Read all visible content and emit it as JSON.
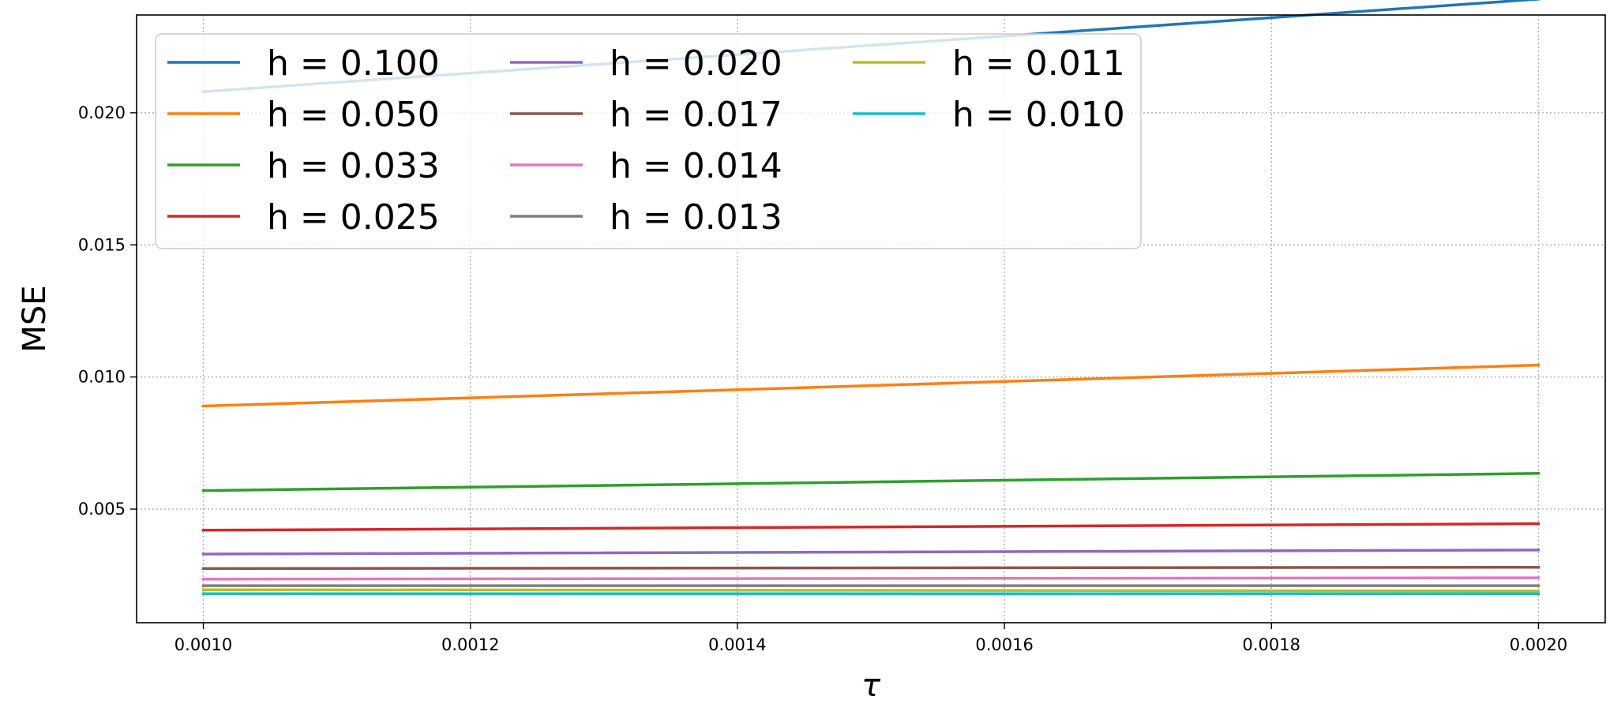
{
  "chart_data": {
    "type": "line",
    "xlabel": "τ",
    "ylabel": "MSE",
    "xlim": [
      0.00095,
      0.00205
    ],
    "ylim": [
      0.0007,
      0.0237
    ],
    "xticks": [
      0.001,
      0.0012,
      0.0014,
      0.0016,
      0.0018,
      0.002
    ],
    "xtick_labels": [
      "0.0010",
      "0.0012",
      "0.0014",
      "0.0016",
      "0.0018",
      "0.0020"
    ],
    "yticks": [
      0.005,
      0.01,
      0.015,
      0.02
    ],
    "ytick_labels": [
      "0.005",
      "0.010",
      "0.015",
      "0.020"
    ],
    "grid": true,
    "legend_placement": "top-left",
    "legend_columns": 3,
    "x": [
      0.001,
      0.002
    ],
    "series": [
      {
        "name": "h = 0.100",
        "color": "#1f77b4",
        "values": [
          0.0208,
          0.0243
        ]
      },
      {
        "name": "h = 0.050",
        "color": "#ff7f0e",
        "values": [
          0.0089,
          0.01045
        ]
      },
      {
        "name": "h = 0.033",
        "color": "#2ca02c",
        "values": [
          0.0057,
          0.00635
        ]
      },
      {
        "name": "h = 0.025",
        "color": "#d62728",
        "values": [
          0.0042,
          0.00445
        ]
      },
      {
        "name": "h = 0.020",
        "color": "#9467bd",
        "values": [
          0.0033,
          0.00345
        ]
      },
      {
        "name": "h = 0.017",
        "color": "#8c564b",
        "values": [
          0.00275,
          0.0028
        ]
      },
      {
        "name": "h = 0.014",
        "color": "#e377c2",
        "values": [
          0.00235,
          0.0024
        ]
      },
      {
        "name": "h = 0.013",
        "color": "#7f7f7f",
        "values": [
          0.0021,
          0.0021
        ]
      },
      {
        "name": "h = 0.011",
        "color": "#bcbd22",
        "values": [
          0.00195,
          0.0019
        ]
      },
      {
        "name": "h = 0.010",
        "color": "#17becf",
        "values": [
          0.0018,
          0.0018
        ]
      }
    ]
  }
}
